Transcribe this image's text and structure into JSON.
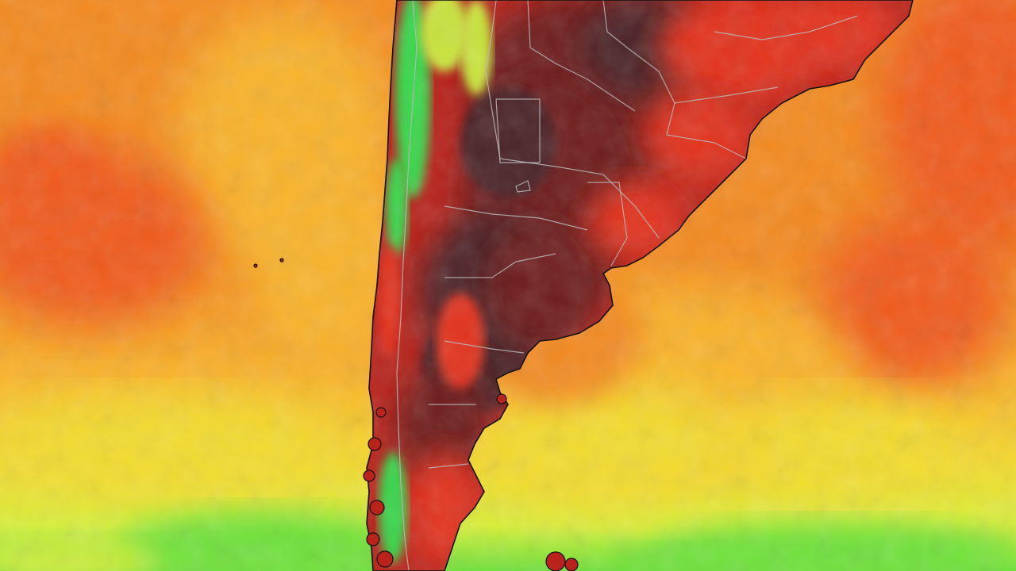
{
  "map": {
    "region": "southern-south-america",
    "layer": "temperature-heat-map",
    "labels_visible": false
  },
  "colors": {
    "ocean_hot": "#f05a1a",
    "ocean_warm": "#f38a20",
    "ocean_mild": "#f9b32a",
    "ocean_yellow": "#f3dc2e",
    "ocean_cool": "#d8ef3a",
    "ocean_green": "#6ee13a",
    "land_extreme": "#4a2226",
    "land_very_hot": "#6e1f1c",
    "land_hot": "#b9231b",
    "land_red": "#e3301a",
    "andes_green": "#39d64a",
    "andes_yellow": "#c9e43a",
    "borders": "#b8b8b8",
    "coastline": "#111111"
  }
}
